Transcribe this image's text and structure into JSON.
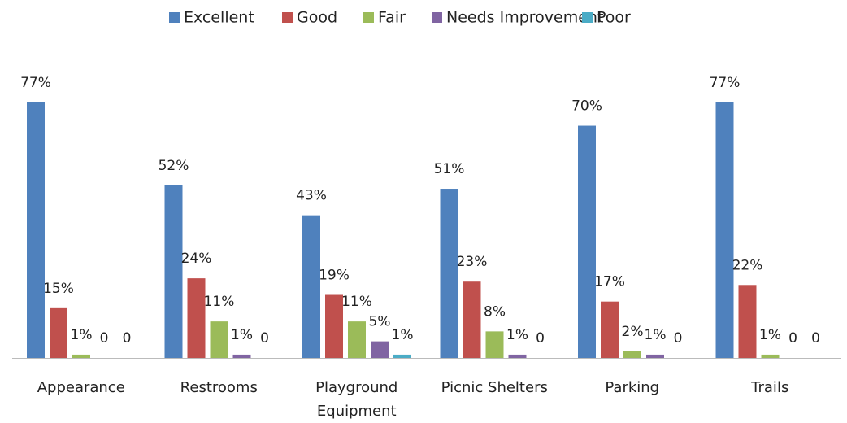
{
  "chart_data": {
    "type": "bar",
    "categories": [
      "Appearance",
      "Restrooms",
      "Playground Equipment",
      "Picnic Shelters",
      "Parking",
      "Trails"
    ],
    "series": [
      {
        "name": "Excellent",
        "color": "#4f81bd",
        "values": [
          77,
          52,
          43,
          51,
          70,
          77
        ],
        "value_labels": [
          "77%",
          "52%",
          "43%",
          "51%",
          "70%",
          "77%"
        ]
      },
      {
        "name": "Good",
        "color": "#c0504d",
        "values": [
          15,
          24,
          19,
          23,
          17,
          22
        ],
        "value_labels": [
          "15%",
          "24%",
          "19%",
          "23%",
          "17%",
          "22%"
        ]
      },
      {
        "name": "Fair",
        "color": "#9bbb59",
        "values": [
          1,
          11,
          11,
          8,
          2,
          1
        ],
        "value_labels": [
          "1%",
          "11%",
          "11%",
          "8%",
          "2%",
          "1%"
        ]
      },
      {
        "name": "Needs Improvement",
        "color": "#8064a2",
        "values": [
          0,
          1,
          5,
          1,
          1,
          0
        ],
        "value_labels": [
          0,
          "1%",
          "5%",
          "1%",
          "1%",
          0
        ]
      },
      {
        "name": "Poor",
        "color": "#4bacc6",
        "values": [
          0,
          0,
          1,
          0,
          0,
          0
        ],
        "value_labels": [
          0,
          0,
          "1%",
          0,
          0,
          0
        ]
      }
    ],
    "legend": "top"
  }
}
